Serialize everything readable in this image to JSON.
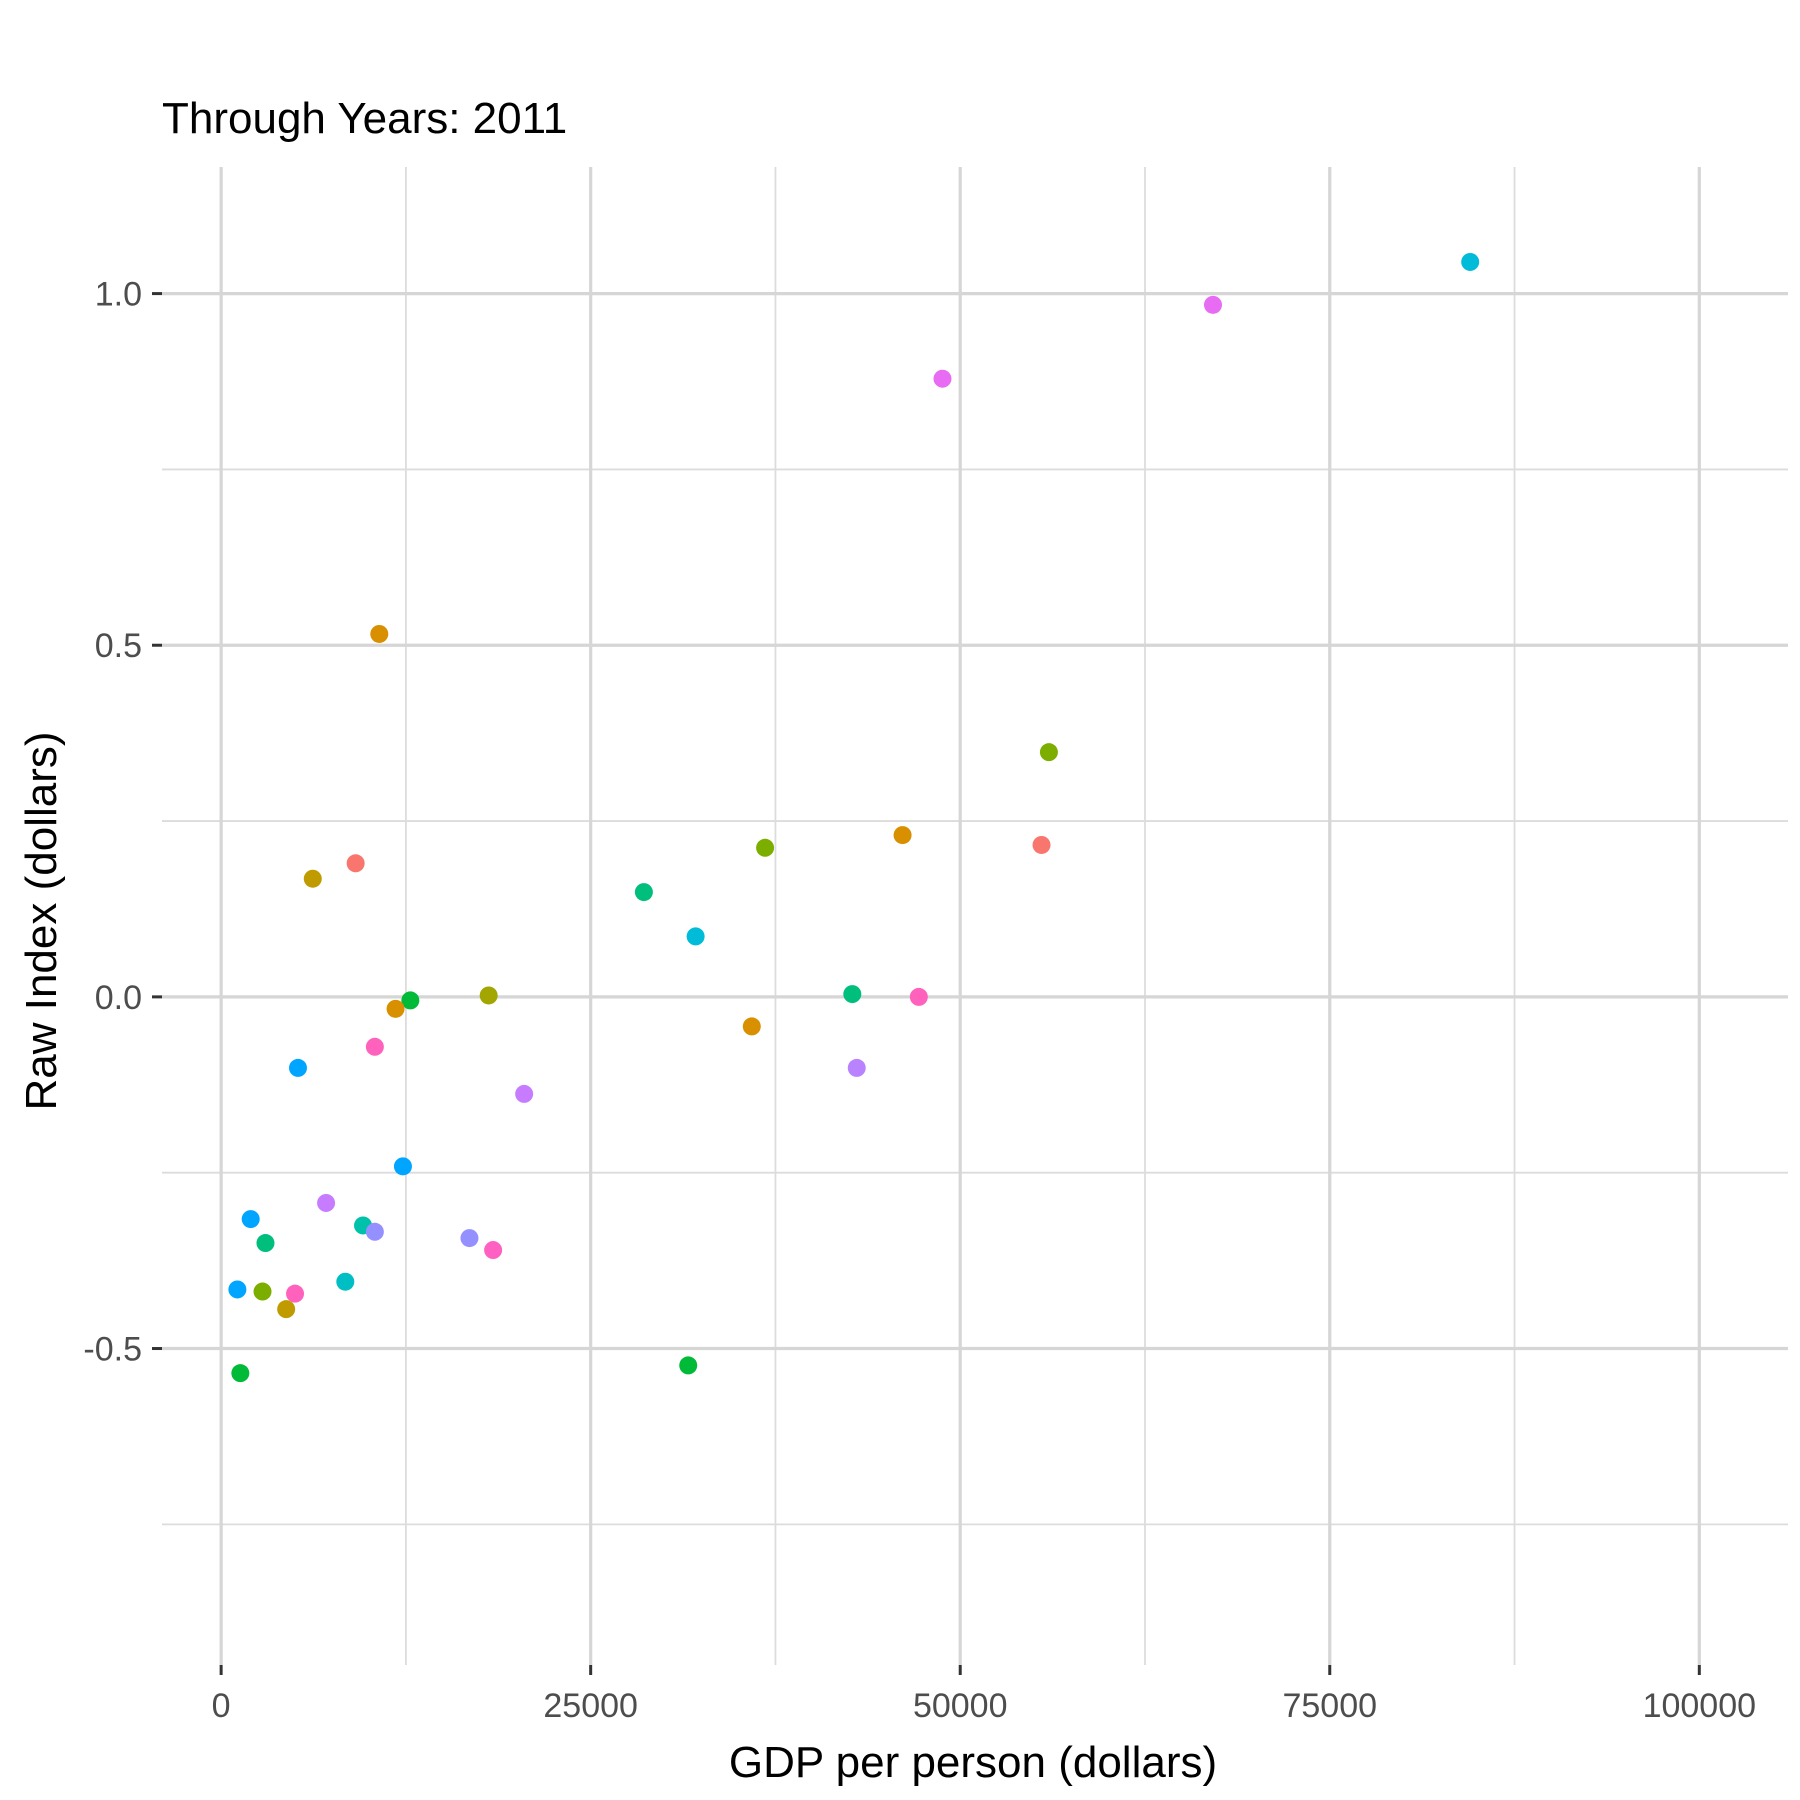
{
  "chart_data": {
    "type": "scatter",
    "title": "Through Years: 2011",
    "xlabel": "GDP per person (dollars)",
    "ylabel": "Raw Index (dollars)",
    "xlim": [
      -4000,
      106000
    ],
    "ylim": [
      -0.95,
      1.18
    ],
    "x_ticks": [
      0,
      25000,
      50000,
      75000,
      100000
    ],
    "x_tick_labels": [
      "0",
      "25000",
      "50000",
      "75000",
      "100000"
    ],
    "x_minor_ticks": [
      12500,
      37500,
      62500,
      87500
    ],
    "y_ticks": [
      -0.5,
      0.0,
      0.5,
      1.0
    ],
    "y_tick_labels": [
      "-0.5",
      "0.0",
      "0.5",
      "1.0"
    ],
    "y_minor_ticks": [
      -0.75,
      -0.25,
      0.25,
      0.75
    ],
    "grid": true,
    "legend": "none",
    "points": [
      {
        "x": 84500,
        "y": 1.045,
        "color": "#00BCD8"
      },
      {
        "x": 67100,
        "y": 0.984,
        "color": "#E76BF3"
      },
      {
        "x": 48800,
        "y": 0.879,
        "color": "#E76BF3"
      },
      {
        "x": 10700,
        "y": 0.516,
        "color": "#D89000"
      },
      {
        "x": 56000,
        "y": 0.348,
        "color": "#7CAE00"
      },
      {
        "x": 46100,
        "y": 0.23,
        "color": "#D89000"
      },
      {
        "x": 55500,
        "y": 0.216,
        "color": "#F8766D"
      },
      {
        "x": 36800,
        "y": 0.212,
        "color": "#7CAE00"
      },
      {
        "x": 9100,
        "y": 0.19,
        "color": "#F8766D"
      },
      {
        "x": 6200,
        "y": 0.168,
        "color": "#C09B00"
      },
      {
        "x": 28600,
        "y": 0.149,
        "color": "#00BF7D"
      },
      {
        "x": 32100,
        "y": 0.086,
        "color": "#00BCD8"
      },
      {
        "x": 42700,
        "y": 0.004,
        "color": "#00BF7D"
      },
      {
        "x": 47200,
        "y": 0.0,
        "color": "#FF62BC"
      },
      {
        "x": 18100,
        "y": 0.002,
        "color": "#A3A500"
      },
      {
        "x": 12800,
        "y": -0.005,
        "color": "#00BA38"
      },
      {
        "x": 11800,
        "y": -0.017,
        "color": "#D89000"
      },
      {
        "x": 35900,
        "y": -0.042,
        "color": "#D89000"
      },
      {
        "x": 10400,
        "y": -0.071,
        "color": "#FF62BC"
      },
      {
        "x": 5200,
        "y": -0.101,
        "color": "#00A5FF"
      },
      {
        "x": 43000,
        "y": -0.101,
        "color": "#B983FF"
      },
      {
        "x": 20500,
        "y": -0.138,
        "color": "#C77CFF"
      },
      {
        "x": 12300,
        "y": -0.241,
        "color": "#00A5FF"
      },
      {
        "x": 7100,
        "y": -0.293,
        "color": "#C77CFF"
      },
      {
        "x": 2000,
        "y": -0.316,
        "color": "#00A5FF"
      },
      {
        "x": 9600,
        "y": -0.325,
        "color": "#00C1AA"
      },
      {
        "x": 10400,
        "y": -0.334,
        "color": "#9590FF"
      },
      {
        "x": 3000,
        "y": -0.35,
        "color": "#00BF7D"
      },
      {
        "x": 16800,
        "y": -0.343,
        "color": "#9590FF"
      },
      {
        "x": 18400,
        "y": -0.36,
        "color": "#FF61C3"
      },
      {
        "x": 8400,
        "y": -0.405,
        "color": "#00BFC4"
      },
      {
        "x": 1100,
        "y": -0.416,
        "color": "#00A5FF"
      },
      {
        "x": 2800,
        "y": -0.419,
        "color": "#7CAE00"
      },
      {
        "x": 5000,
        "y": -0.422,
        "color": "#FF62BC"
      },
      {
        "x": 4400,
        "y": -0.444,
        "color": "#C09B00"
      },
      {
        "x": 31600,
        "y": -0.524,
        "color": "#00BA38"
      },
      {
        "x": 1300,
        "y": -0.535,
        "color": "#00BA38"
      }
    ]
  }
}
